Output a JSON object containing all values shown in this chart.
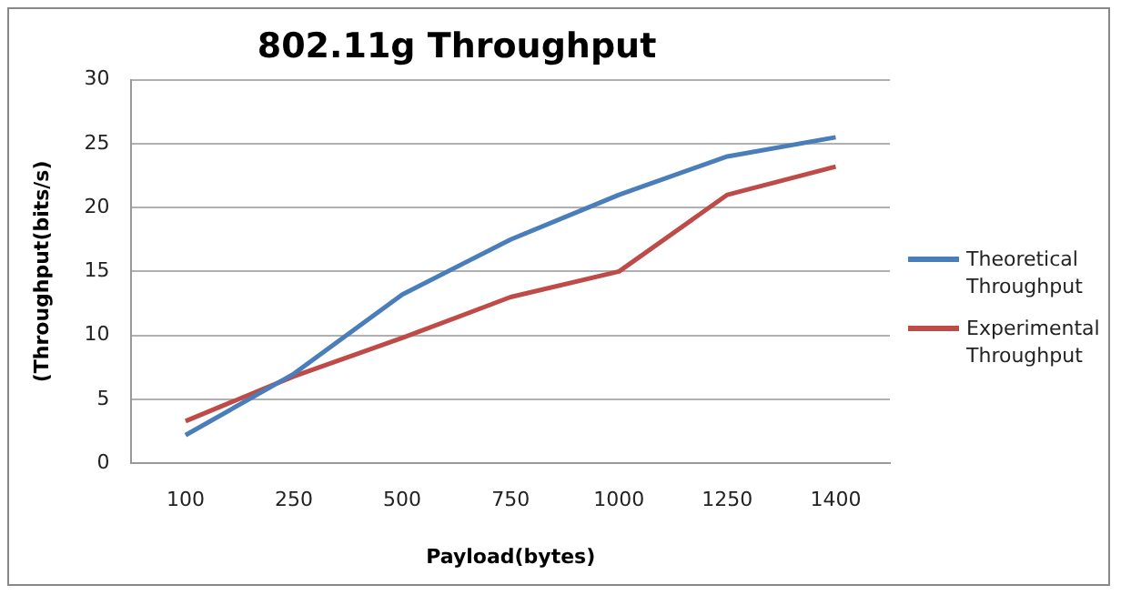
{
  "chart_data": {
    "type": "line",
    "title": "802.11g Throughput",
    "xlabel": "Payload(bytes)",
    "ylabel": "(Throughput(bits/s)",
    "categories": [
      "100",
      "250",
      "500",
      "750",
      "1000",
      "1250",
      "1400"
    ],
    "series": [
      {
        "name": "Theoretical Throughput",
        "color": "#4a7ebb",
        "values": [
          2.2,
          7,
          13.2,
          17.5,
          21,
          24,
          25.5
        ]
      },
      {
        "name": "Experimental Throughput",
        "color": "#be4b48",
        "values": [
          3.3,
          6.8,
          9.8,
          13,
          15,
          21,
          23.2
        ]
      }
    ],
    "ylim": [
      0,
      30
    ],
    "yticks": [
      0,
      5,
      10,
      15,
      20,
      25,
      30
    ],
    "grid": "y",
    "legend": "right",
    "marker": "none"
  }
}
